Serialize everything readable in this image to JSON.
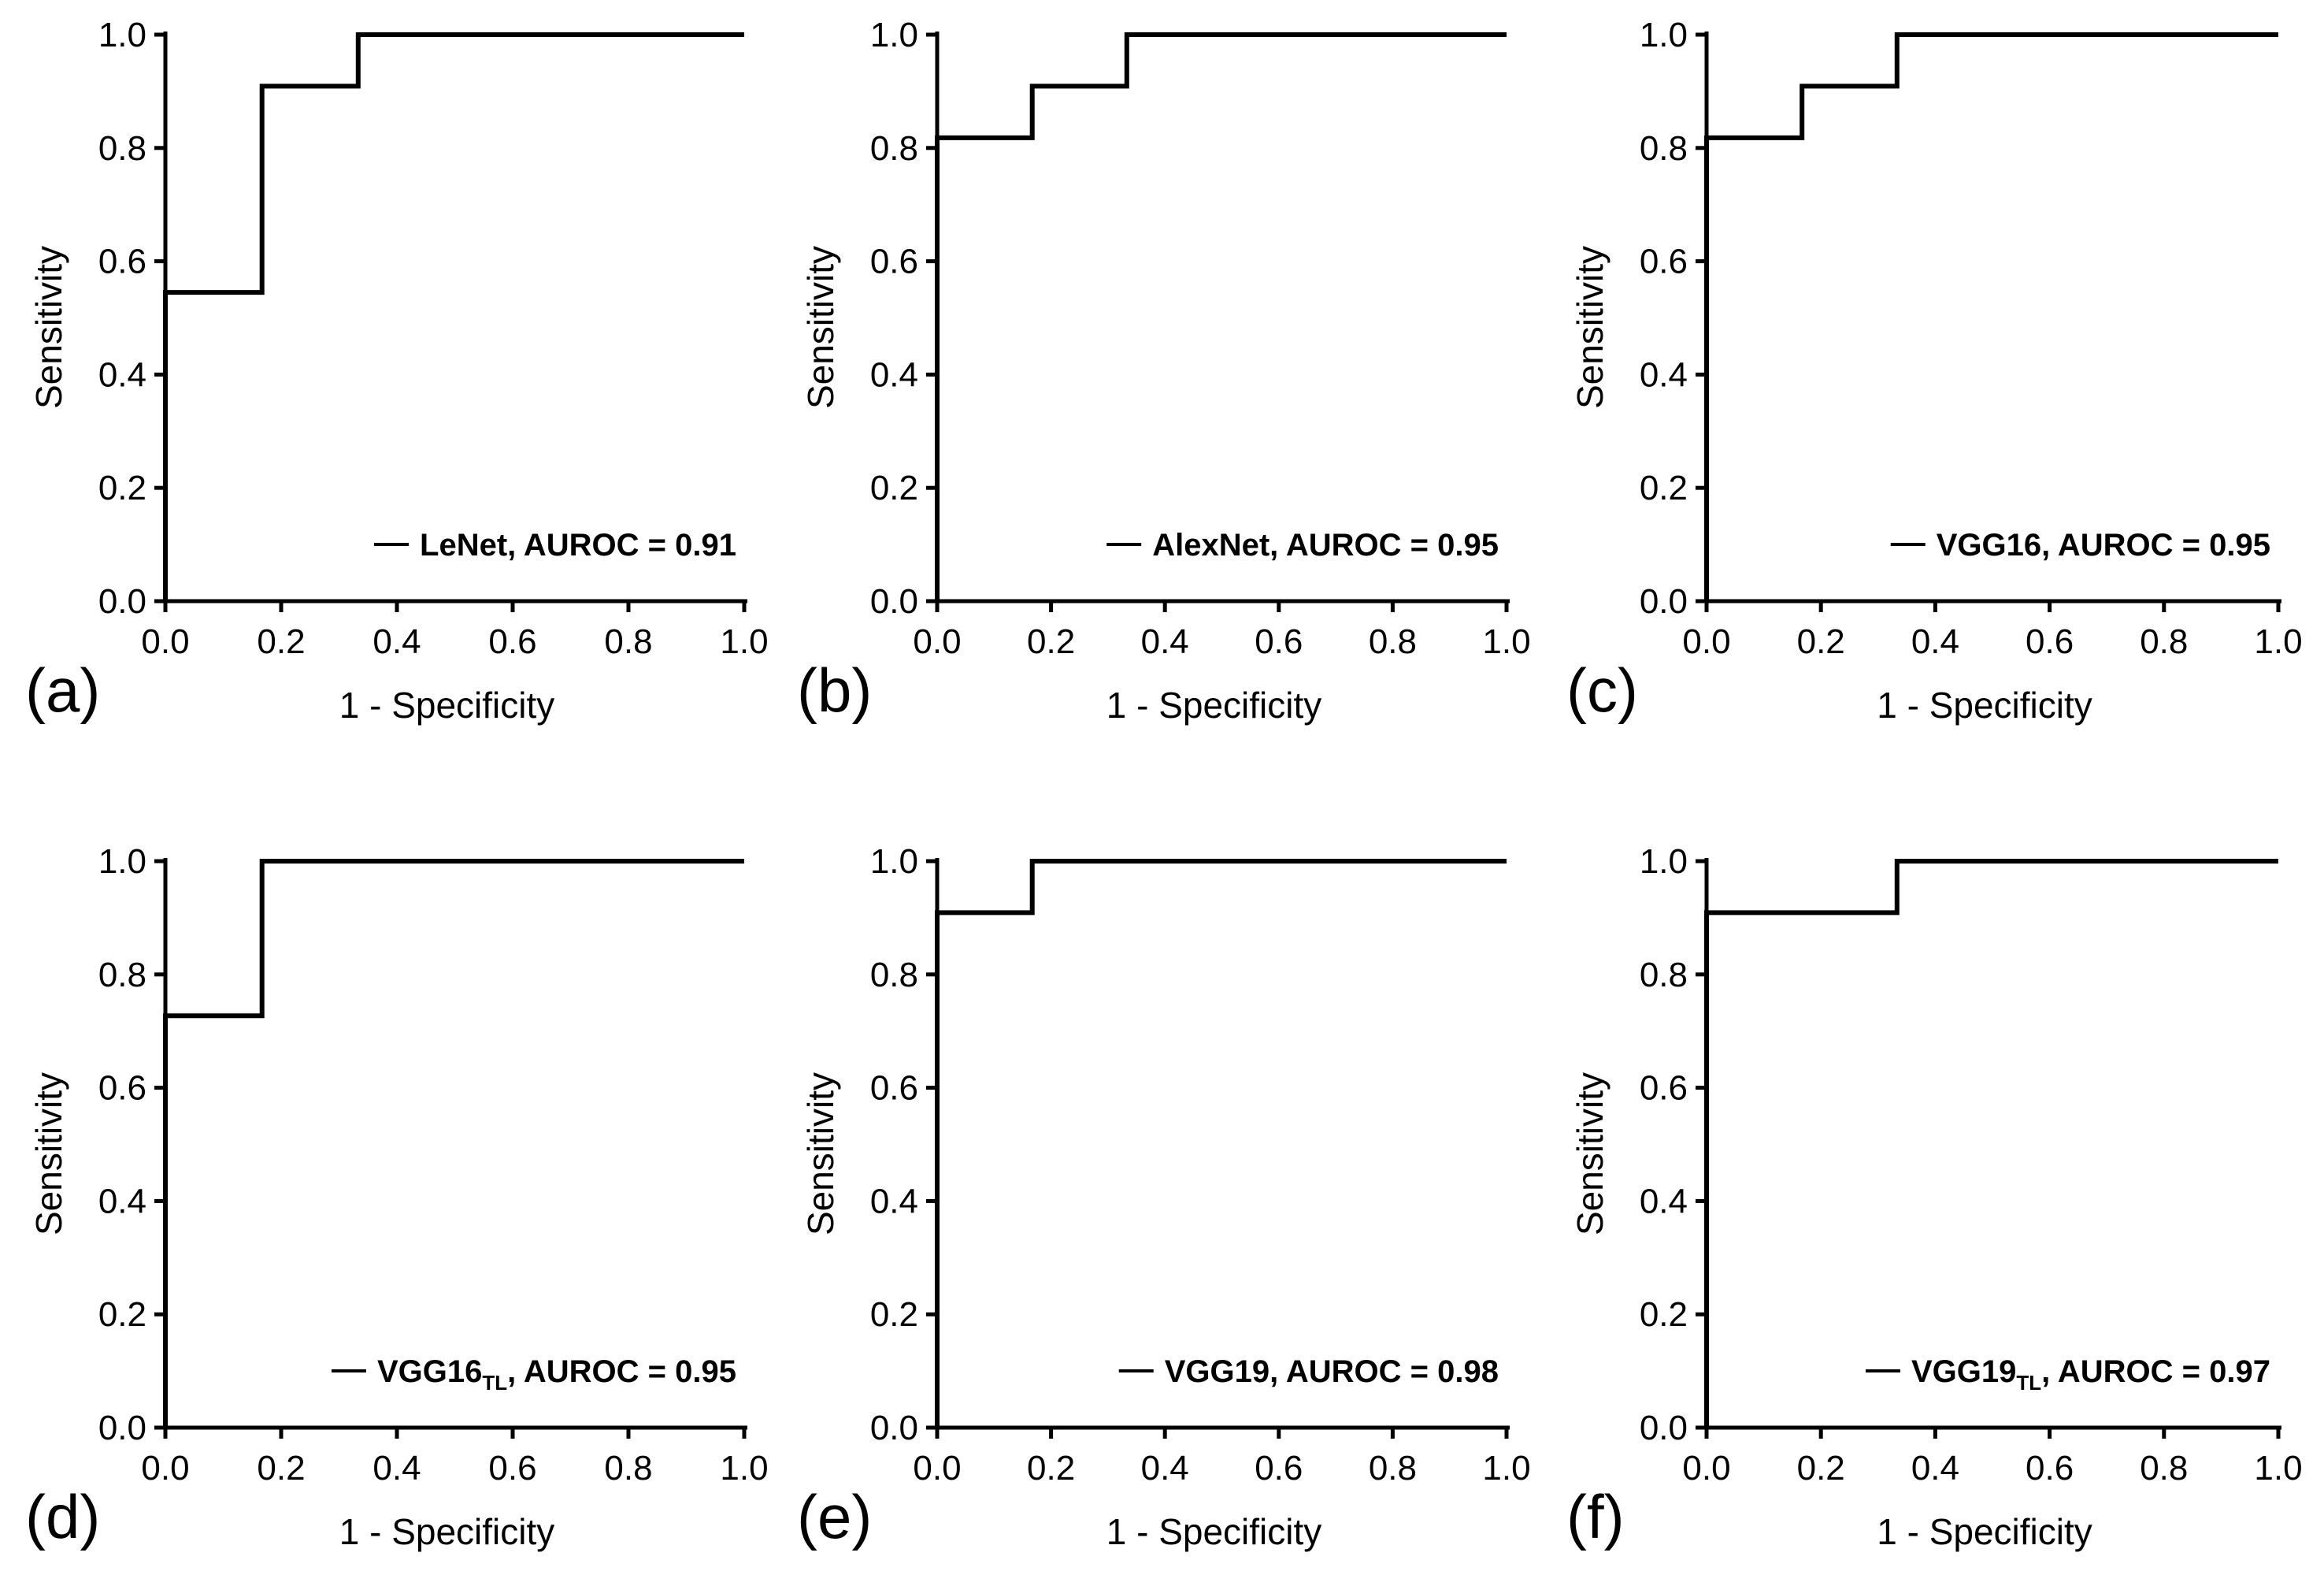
{
  "figure": {
    "panels": [
      {
        "id": "(a)",
        "model": "LeNet",
        "subscript": "",
        "auroc_text": ", AUROC = 0.91"
      },
      {
        "id": "(b)",
        "model": "AlexNet",
        "subscript": "",
        "auroc_text": ", AUROC = 0.95"
      },
      {
        "id": "(c)",
        "model": "VGG16",
        "subscript": "",
        "auroc_text": ", AUROC = 0.95"
      },
      {
        "id": "(d)",
        "model": "VGG16",
        "subscript": "TL",
        "auroc_text": ", AUROC = 0.95"
      },
      {
        "id": "(e)",
        "model": "VGG19",
        "subscript": "",
        "auroc_text": ", AUROC = 0.98"
      },
      {
        "id": "(f)",
        "model": "VGG19",
        "subscript": "TL",
        "auroc_text": ", AUROC = 0.97"
      }
    ]
  },
  "chart_data": [
    {
      "type": "line",
      "title": "",
      "xlabel": "1 - Specificity",
      "ylabel": "Sensitivity",
      "xlim": [
        0,
        1
      ],
      "ylim": [
        0,
        1
      ],
      "xticks": [
        "0.0",
        "0.2",
        "0.4",
        "0.6",
        "0.8",
        "1.0"
      ],
      "yticks": [
        "0.0",
        "0.2",
        "0.4",
        "0.6",
        "0.8",
        "1.0"
      ],
      "series": [
        {
          "name": "LeNet, AUROC = 0.91",
          "x": [
            0,
            0,
            0.167,
            0.167,
            0.333,
            0.333,
            1.0
          ],
          "y": [
            0,
            0.545,
            0.545,
            0.909,
            0.909,
            1.0,
            1.0
          ]
        }
      ]
    },
    {
      "type": "line",
      "title": "",
      "xlabel": "1 - Specificity",
      "ylabel": "Sensitivity",
      "xlim": [
        0,
        1
      ],
      "ylim": [
        0,
        1
      ],
      "xticks": [
        "0.0",
        "0.2",
        "0.4",
        "0.6",
        "0.8",
        "1.0"
      ],
      "yticks": [
        "0.0",
        "0.2",
        "0.4",
        "0.6",
        "0.8",
        "1.0"
      ],
      "series": [
        {
          "name": "AlexNet, AUROC = 0.95",
          "x": [
            0,
            0,
            0.167,
            0.167,
            0.333,
            0.333,
            1.0
          ],
          "y": [
            0,
            0.818,
            0.818,
            0.909,
            0.909,
            1.0,
            1.0
          ]
        }
      ]
    },
    {
      "type": "line",
      "title": "",
      "xlabel": "1 - Specificity",
      "ylabel": "Sensitivity",
      "xlim": [
        0,
        1
      ],
      "ylim": [
        0,
        1
      ],
      "xticks": [
        "0.0",
        "0.2",
        "0.4",
        "0.6",
        "0.8",
        "1.0"
      ],
      "yticks": [
        "0.0",
        "0.2",
        "0.4",
        "0.6",
        "0.8",
        "1.0"
      ],
      "series": [
        {
          "name": "VGG16, AUROC = 0.95",
          "x": [
            0,
            0,
            0.167,
            0.167,
            0.333,
            0.333,
            1.0
          ],
          "y": [
            0,
            0.818,
            0.818,
            0.909,
            0.909,
            1.0,
            1.0
          ]
        }
      ]
    },
    {
      "type": "line",
      "title": "",
      "xlabel": "1 - Specificity",
      "ylabel": "Sensitivity",
      "xlim": [
        0,
        1
      ],
      "ylim": [
        0,
        1
      ],
      "xticks": [
        "0.0",
        "0.2",
        "0.4",
        "0.6",
        "0.8",
        "1.0"
      ],
      "yticks": [
        "0.0",
        "0.2",
        "0.4",
        "0.6",
        "0.8",
        "1.0"
      ],
      "series": [
        {
          "name": "VGG16TL, AUROC = 0.95",
          "x": [
            0,
            0,
            0.167,
            0.167,
            1.0
          ],
          "y": [
            0,
            0.727,
            0.727,
            1.0,
            1.0
          ]
        }
      ]
    },
    {
      "type": "line",
      "title": "",
      "xlabel": "1 - Specificity",
      "ylabel": "Sensitivity",
      "xlim": [
        0,
        1
      ],
      "ylim": [
        0,
        1
      ],
      "xticks": [
        "0.0",
        "0.2",
        "0.4",
        "0.6",
        "0.8",
        "1.0"
      ],
      "yticks": [
        "0.0",
        "0.2",
        "0.4",
        "0.6",
        "0.8",
        "1.0"
      ],
      "series": [
        {
          "name": "VGG19, AUROC = 0.98",
          "x": [
            0,
            0,
            0.167,
            0.167,
            1.0
          ],
          "y": [
            0,
            0.909,
            0.909,
            1.0,
            1.0
          ]
        }
      ]
    },
    {
      "type": "line",
      "title": "",
      "xlabel": "1 - Specificity",
      "ylabel": "Sensitivity",
      "xlim": [
        0,
        1
      ],
      "ylim": [
        0,
        1
      ],
      "xticks": [
        "0.0",
        "0.2",
        "0.4",
        "0.6",
        "0.8",
        "1.0"
      ],
      "yticks": [
        "0.0",
        "0.2",
        "0.4",
        "0.6",
        "0.8",
        "1.0"
      ],
      "series": [
        {
          "name": "VGG19TL, AUROC = 0.97",
          "x": [
            0,
            0,
            0.333,
            0.333,
            1.0
          ],
          "y": [
            0,
            0.909,
            0.909,
            1.0,
            1.0
          ]
        }
      ]
    }
  ]
}
